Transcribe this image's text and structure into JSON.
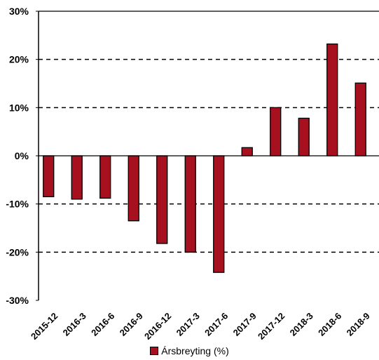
{
  "chart_data": {
    "type": "bar",
    "categories": [
      "2015-12",
      "2016-3",
      "2016-6",
      "2016-9",
      "2016-12",
      "2017-3",
      "2017-6",
      "2017-9",
      "2017-12",
      "2018-3",
      "2018-6",
      "2018-9"
    ],
    "series": [
      {
        "name": "Ársbreyting (%)",
        "values": [
          -8.5,
          -9.0,
          -8.8,
          -13.5,
          -18.2,
          -20.0,
          -24.2,
          1.7,
          10.0,
          7.8,
          23.2,
          15.1
        ]
      }
    ],
    "yticks": [
      "30%",
      "20%",
      "10%",
      "0%",
      "-10%",
      "-20%",
      "-30%"
    ],
    "ylim": [
      -30,
      30
    ],
    "ytick_step": 10,
    "grid": "horizontal dashed at 10, 20, -10, -20",
    "legend_position": "bottom",
    "colors": {
      "bar_fill": "#a6101f",
      "bar_stroke": "#000000"
    }
  },
  "legend": {
    "label": "Ársbreyting (%)",
    "color": "#a6101f"
  }
}
